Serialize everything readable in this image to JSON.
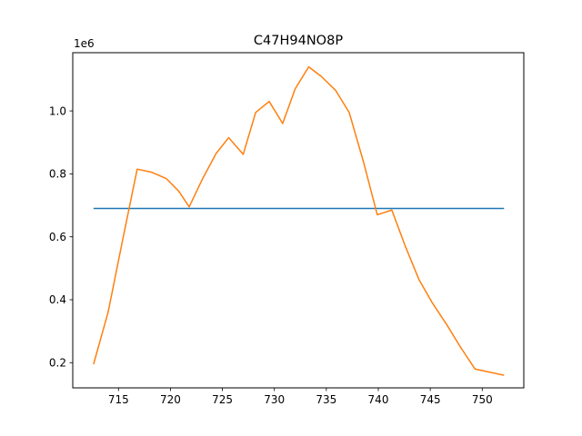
{
  "chart_data": {
    "type": "line",
    "title": "C47H94NO8P",
    "y_offset_label": "1e6",
    "xlim": [
      710.6,
      754.0
    ],
    "ylim": [
      120000,
      1185000
    ],
    "x_ticks": [
      715,
      720,
      725,
      730,
      735,
      740,
      745,
      750
    ],
    "y_ticks": [
      0.2,
      0.4,
      0.6,
      0.8,
      1.0
    ],
    "y_tick_scale": 1000000,
    "grid": false,
    "series": [
      {
        "color": "#1f77b4",
        "x": [
          712.6,
          752.1
        ],
        "y": [
          690000,
          690000
        ]
      },
      {
        "color": "#ff7f0e",
        "x": [
          712.6,
          714.0,
          715.4,
          716.8,
          718.2,
          719.6,
          720.8,
          721.8,
          723.1,
          724.4,
          725.6,
          727.0,
          728.2,
          729.5,
          730.8,
          732.0,
          733.3,
          734.5,
          735.9,
          737.2,
          738.6,
          739.9,
          741.3,
          742.6,
          743.9,
          745.2,
          746.6,
          747.9,
          749.3,
          752.1
        ],
        "y": [
          195000,
          360000,
          590000,
          815000,
          805000,
          785000,
          745000,
          695000,
          785000,
          865000,
          915000,
          862000,
          995000,
          1030000,
          960000,
          1070000,
          1140000,
          1110000,
          1065000,
          995000,
          835000,
          670000,
          685000,
          570000,
          465000,
          390000,
          320000,
          250000,
          180000,
          160000
        ]
      }
    ]
  }
}
